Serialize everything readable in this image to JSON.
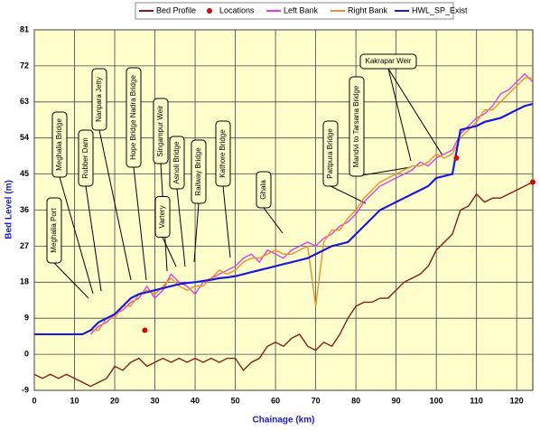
{
  "chart_data": {
    "type": "line",
    "legend": "top",
    "xlabel": "Chainage (km)",
    "ylabel": "Bed Level (m)",
    "xlim": [
      0,
      124
    ],
    "ylim": [
      -9,
      81
    ],
    "xticks": [
      0,
      10,
      20,
      30,
      40,
      50,
      60,
      70,
      80,
      90,
      100,
      110,
      120
    ],
    "yticks": [
      -9,
      0,
      9,
      18,
      27,
      36,
      45,
      54,
      63,
      72,
      81
    ],
    "grid": true,
    "x": [
      0,
      2,
      4,
      6,
      8,
      10,
      12,
      14,
      16,
      18,
      20,
      22,
      24,
      26,
      28,
      30,
      32,
      34,
      36,
      38,
      40,
      42,
      44,
      46,
      48,
      50,
      52,
      54,
      56,
      58,
      60,
      62,
      64,
      66,
      68,
      70,
      72,
      74,
      76,
      78,
      80,
      82,
      84,
      86,
      88,
      90,
      92,
      94,
      96,
      98,
      100,
      102,
      104,
      106,
      108,
      110,
      112,
      114,
      116,
      118,
      120,
      122,
      124
    ],
    "series": [
      {
        "name": "Bed Profile",
        "color": "#8b1a1a",
        "values": [
          -5,
          -6,
          -5,
          -6,
          -5,
          -6,
          -7,
          -8,
          -7,
          -6,
          -3,
          -4,
          -2,
          -1,
          -3,
          -2,
          -1,
          -2,
          -1,
          -2,
          -1,
          -2,
          -1,
          -2,
          -1,
          -1,
          -4,
          -2,
          -1,
          2,
          3,
          2,
          4,
          5,
          2,
          1,
          3,
          2,
          5,
          9,
          12,
          13,
          13,
          14,
          14,
          16,
          18,
          19,
          20,
          22,
          26,
          28,
          30,
          36,
          37,
          40,
          38,
          39,
          39,
          40,
          41,
          42,
          43
        ]
      },
      {
        "name": "Locations",
        "color": "#e00000",
        "type": "scatter",
        "x": [
          27.5,
          105,
          124
        ],
        "values": [
          6,
          49,
          43
        ]
      },
      {
        "name": "Left Bank",
        "color": "#e040e0",
        "values": [
          null,
          null,
          null,
          null,
          null,
          null,
          null,
          5,
          7,
          8,
          10,
          11,
          13,
          14,
          17,
          14,
          16,
          20,
          18,
          17,
          15,
          18,
          19,
          20,
          21,
          22,
          24,
          25,
          23,
          26,
          25,
          24,
          26,
          27,
          28,
          27,
          29,
          30,
          32,
          33,
          35,
          38,
          40,
          42,
          43,
          44,
          45,
          46,
          48,
          47,
          49,
          50,
          51,
          55,
          57,
          59,
          60,
          62,
          65,
          66,
          68,
          70,
          68
        ]
      },
      {
        "name": "Right Bank",
        "color": "#f0902a",
        "values": [
          null,
          null,
          null,
          null,
          null,
          null,
          null,
          6,
          6,
          9,
          9,
          12,
          12,
          15,
          16,
          15,
          17,
          19,
          17,
          16,
          17,
          17,
          19,
          21,
          20,
          21,
          23,
          24,
          24,
          25,
          26,
          25,
          25,
          26,
          27,
          12,
          28,
          31,
          31,
          34,
          36,
          39,
          41,
          43,
          44,
          45,
          46,
          47,
          47,
          48,
          50,
          49,
          50,
          54,
          56,
          58,
          61,
          61,
          63,
          65,
          67,
          69,
          69
        ]
      },
      {
        "name": "HWL_SP_Exist",
        "color": "#1a1ae0",
        "values": [
          5,
          5,
          5,
          5,
          5,
          5,
          5,
          6,
          8,
          9,
          10,
          12,
          14,
          15,
          15.5,
          16,
          16.5,
          17,
          17.5,
          17.8,
          18,
          18.3,
          18.6,
          19,
          19.2,
          19.5,
          20,
          20.5,
          21,
          21.5,
          22,
          22.5,
          23,
          23.5,
          24,
          25,
          26,
          27,
          27.5,
          28,
          30,
          32,
          34,
          36,
          37,
          38,
          39,
          40,
          41,
          42,
          44,
          44.5,
          45,
          56,
          56.5,
          57,
          58,
          58.5,
          59,
          60,
          61,
          62,
          62.5
        ]
      }
    ],
    "annotations": [
      "Meghalia Port",
      "Meghalia Bridge",
      "Rubber Dam",
      "Nanpara Jetty",
      "Hope Bridge Nadra Bridge",
      "Singampur Weir",
      "Vartery",
      "Asnoli Bridge",
      "Railway Bridge",
      "Kathore Bridge",
      "Ghala",
      "Pattpura Bridge",
      "Mandvi to Tarsana Bridge",
      "Kakrapar Weir"
    ]
  }
}
